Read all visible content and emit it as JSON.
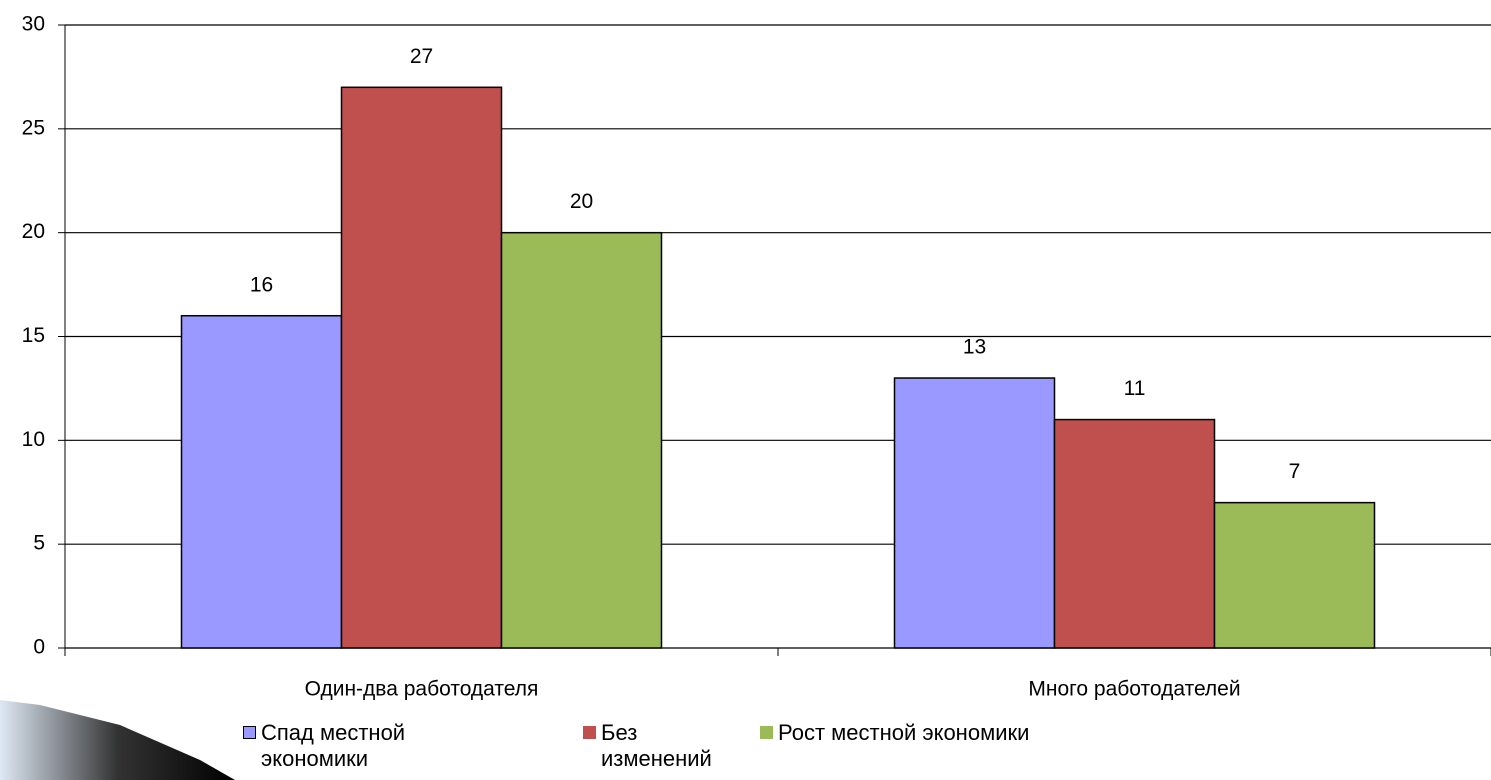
{
  "chart_data": {
    "type": "bar",
    "categories": [
      "Один-два работодателя",
      "Много работодателей"
    ],
    "series": [
      {
        "name": "Спад местной экономики",
        "color": "#9999ff",
        "values": [
          16,
          13
        ]
      },
      {
        "name": "Без изменений",
        "color": "#c0504d",
        "values": [
          27,
          11
        ]
      },
      {
        "name": "Рост местной экономики",
        "color": "#9bbb59",
        "values": [
          20,
          7
        ]
      }
    ],
    "ylim": [
      0,
      30
    ],
    "yticks": [
      0,
      5,
      10,
      15,
      20,
      25,
      30
    ],
    "grid": true,
    "legend": "bottom"
  }
}
